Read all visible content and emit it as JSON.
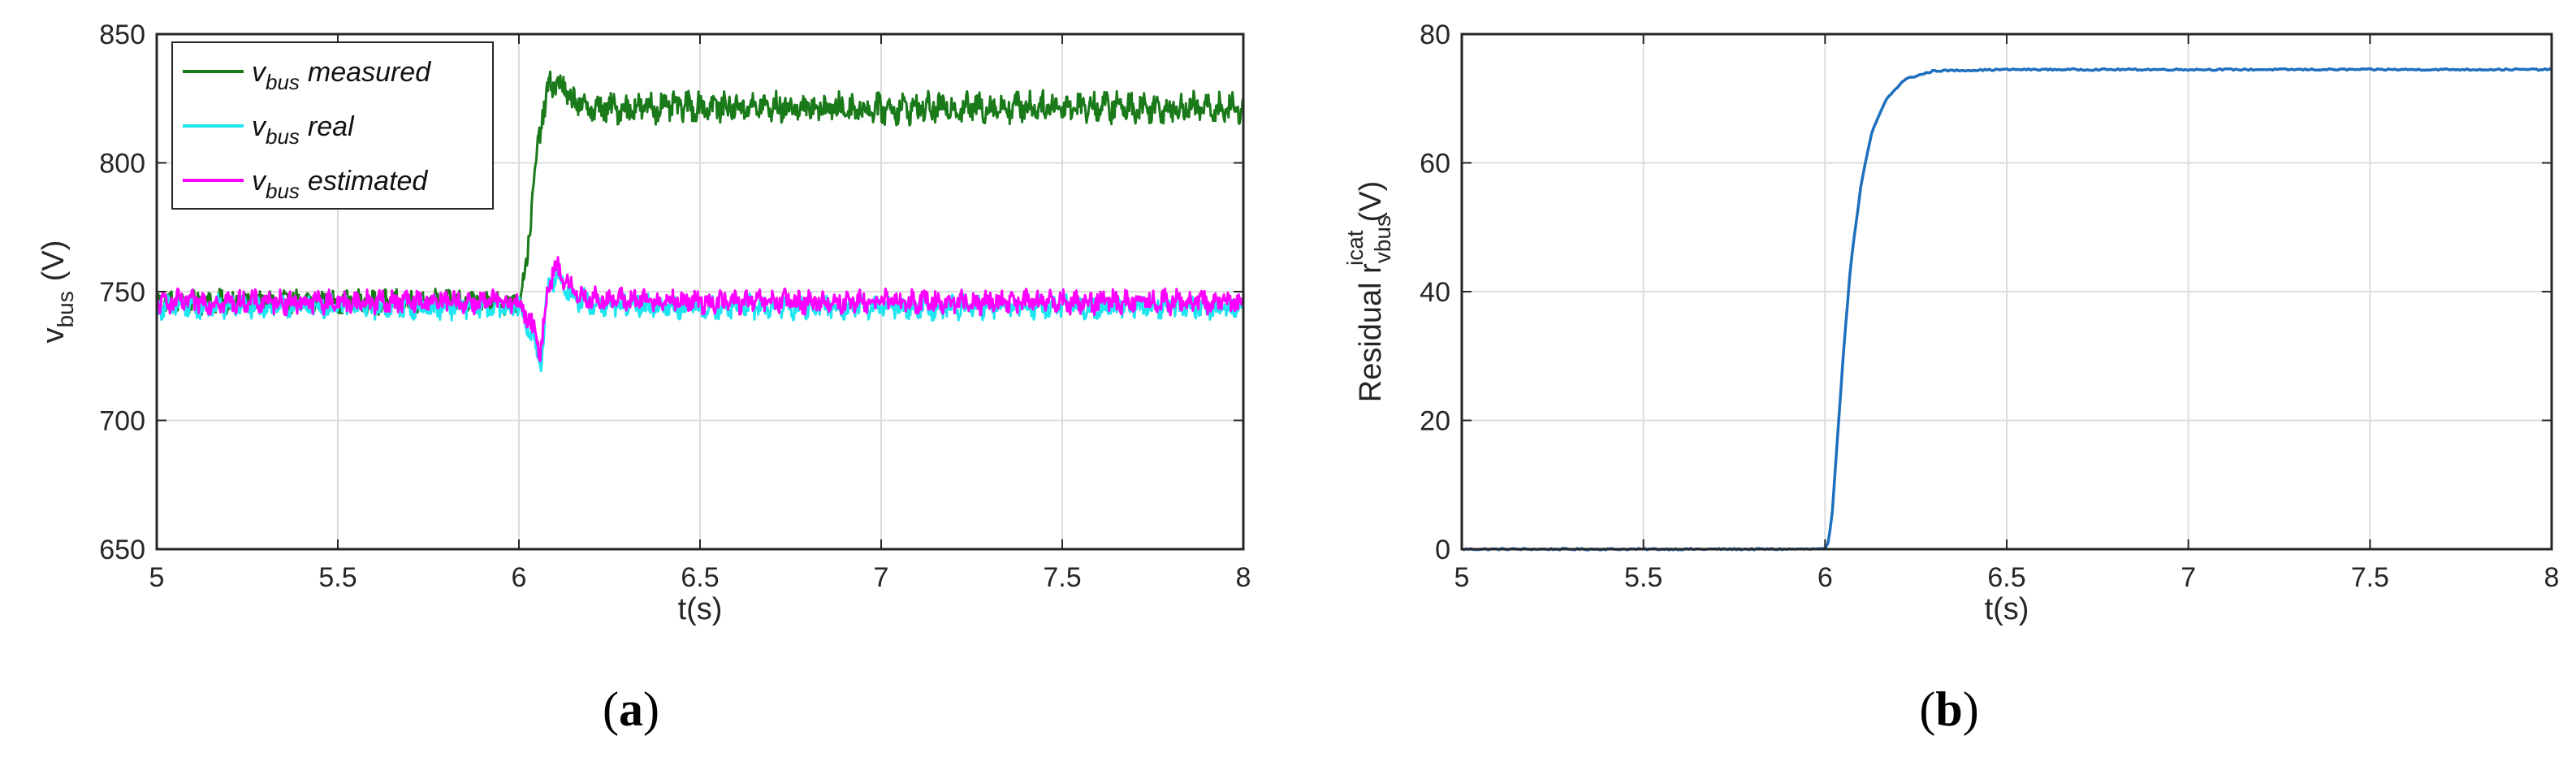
{
  "chart_data": [
    {
      "type": "line",
      "panel_label": "a",
      "xlabel": "t(s)",
      "ylabel_base": "v",
      "ylabel_sub": "bus",
      "ylabel_unit": "(V)",
      "xlim": [
        5,
        8
      ],
      "ylim": [
        650,
        850
      ],
      "xticks": [
        5,
        5.5,
        6,
        6.5,
        7,
        7.5,
        8
      ],
      "yticks": [
        650,
        700,
        750,
        800,
        850
      ],
      "grid": true,
      "legend_position": "top-left",
      "legend_sym": "v",
      "legend_sub": "bus",
      "series": [
        {
          "name": "measured",
          "color": "#1a7a1a",
          "x": [
            5,
            6.0,
            6.02,
            6.04,
            6.06,
            6.08,
            6.1,
            6.15,
            6.2,
            6.5,
            7,
            7.5,
            8
          ],
          "y": [
            746,
            746,
            760,
            790,
            815,
            828,
            832,
            824,
            821,
            822,
            821,
            822,
            821
          ]
        },
        {
          "name": "real",
          "color": "#1ee6f0",
          "x": [
            5,
            6.0,
            6.04,
            6.06,
            6.08,
            6.1,
            6.15,
            6.2,
            6.5,
            7,
            7.5,
            8
          ],
          "y": [
            744,
            744,
            732,
            722,
            750,
            757,
            748,
            745,
            744,
            744,
            744,
            744
          ]
        },
        {
          "name": "estimated",
          "color": "#ff00ff",
          "x": [
            5,
            6.0,
            6.04,
            6.06,
            6.08,
            6.1,
            6.15,
            6.2,
            6.5,
            7,
            7.5,
            8
          ],
          "y": [
            746,
            746,
            735,
            726,
            752,
            760,
            750,
            747,
            746,
            746,
            746,
            746
          ]
        }
      ]
    },
    {
      "type": "line",
      "panel_label": "b",
      "xlabel": "t(s)",
      "ylabel_base": "Residual r",
      "ylabel_sub": "vbus",
      "ylabel_sup": "icat",
      "ylabel_unit": "(V)",
      "xlim": [
        5,
        8
      ],
      "ylim": [
        0,
        80
      ],
      "xticks": [
        5,
        5.5,
        6,
        6.5,
        7,
        7.5,
        8
      ],
      "yticks": [
        0,
        20,
        40,
        60,
        80
      ],
      "grid": true,
      "series": [
        {
          "color": "#1f6fbf",
          "x": [
            5,
            6.0,
            6.01,
            6.02,
            6.03,
            6.05,
            6.07,
            6.1,
            6.13,
            6.17,
            6.22,
            6.3,
            6.5,
            7,
            8
          ],
          "y": [
            0,
            0,
            1,
            6,
            14,
            30,
            44,
            57,
            65,
            70,
            73,
            74.3,
            74.5,
            74.5,
            74.5
          ]
        }
      ]
    }
  ]
}
